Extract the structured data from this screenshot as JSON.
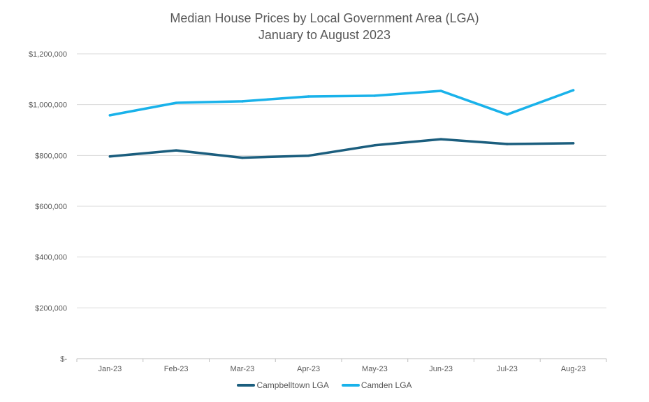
{
  "chart_data": {
    "type": "line",
    "title": "Median House Prices by Local Government Area (LGA)",
    "subtitle": "January to August 2023",
    "xlabel": "",
    "ylabel": "",
    "categories": [
      "Jan-23",
      "Feb-23",
      "Mar-23",
      "Apr-23",
      "May-23",
      "Jun-23",
      "Jul-23",
      "Aug-23"
    ],
    "ylim": [
      0,
      1200000
    ],
    "yticks": [
      0,
      200000,
      400000,
      600000,
      800000,
      1000000,
      1200000
    ],
    "ytick_labels": [
      "$-",
      "$200,000",
      "$400,000",
      "$600,000",
      "$800,000",
      "$1,000,000",
      "$1,200,000"
    ],
    "grid": true,
    "legend_position": "bottom",
    "series": [
      {
        "name": "Campbelltown LGA",
        "color": "#1B5E7E",
        "values": [
          796000,
          820000,
          791000,
          799000,
          840000,
          864000,
          845000,
          848000
        ]
      },
      {
        "name": "Camden LGA",
        "color": "#19B2EA",
        "values": [
          958000,
          1007000,
          1013000,
          1032000,
          1035000,
          1054000,
          961000,
          1057000
        ]
      }
    ]
  }
}
